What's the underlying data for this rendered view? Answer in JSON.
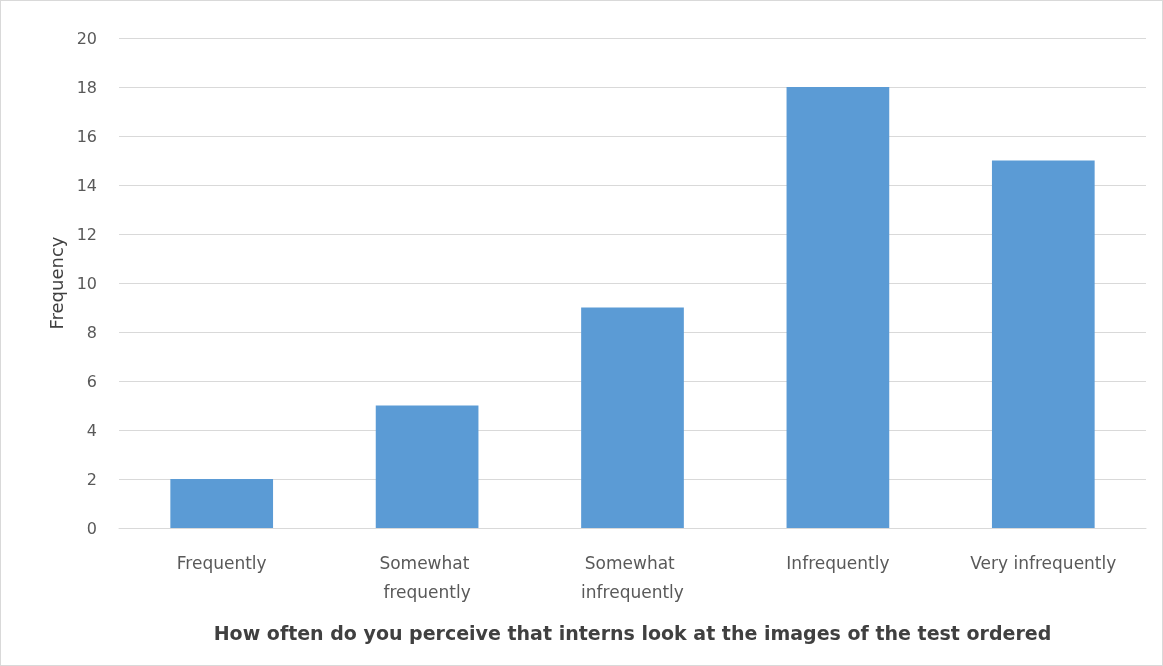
{
  "chart_data": {
    "type": "bar",
    "xlabel": "How often do you perceive that interns look at the images of the test ordered",
    "ylabel": "Frequency",
    "categories": [
      "Frequently",
      "Somewhat frequently",
      "Somewhat infrequently",
      "Infrequently",
      "Very infrequently"
    ],
    "values": [
      2,
      5,
      9,
      18,
      15
    ],
    "color": "#5b9bd5",
    "ylim": [
      0,
      20
    ],
    "yticks": [
      0,
      2,
      4,
      6,
      8,
      10,
      12,
      14,
      16,
      18,
      20
    ],
    "grid": "y"
  }
}
